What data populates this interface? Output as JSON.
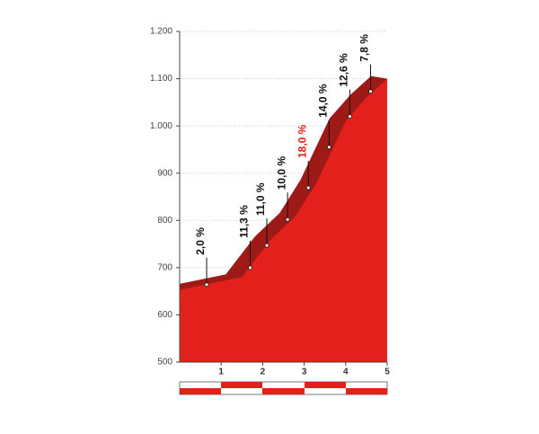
{
  "chart_data": {
    "type": "area",
    "color": "#e3201b",
    "shade_color": "#9e1a17",
    "x": [
      0,
      1.5,
      2.2,
      2.8,
      3.3,
      4.0,
      4.5,
      5.0
    ],
    "values": [
      653,
      680,
      760,
      810,
      880,
      1010,
      1060,
      1100
    ],
    "xlim": [
      0,
      5
    ],
    "xticks": [
      1,
      2,
      3,
      4,
      5
    ],
    "ylim": [
      500,
      1200
    ],
    "yticks": [
      500,
      600,
      700,
      800,
      900,
      {
        "value": 1000,
        "label": "1.000"
      },
      {
        "value": 1100,
        "label": "1.100"
      },
      {
        "value": 1200,
        "label": "1.200"
      }
    ],
    "grid": true,
    "markers": {
      "x": [
        0.65,
        1.7,
        2.1,
        2.6,
        3.1,
        3.6,
        4.1,
        4.6
      ],
      "elevation": [
        664,
        700,
        747,
        802,
        869,
        955,
        1020,
        1073
      ],
      "values": [
        2.0,
        11.3,
        11.0,
        10.0,
        18.0,
        14.0,
        12.6,
        7.8
      ],
      "value_labels": [
        "2,0 %",
        "11,3 %",
        "11,0 %",
        "10,0 %",
        "18,0 %",
        "14,0 %",
        "12,6 %",
        "7,8 %"
      ],
      "label_colors": [
        "#111111",
        "#111111",
        "#111111",
        "#111111",
        "#e3201b",
        "#111111",
        "#111111",
        "#111111"
      ]
    }
  }
}
